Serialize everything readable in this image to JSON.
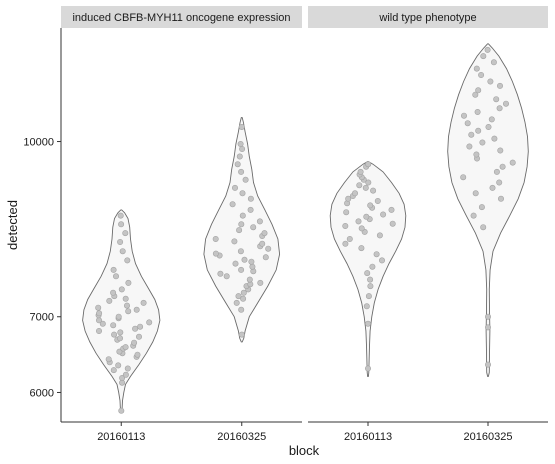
{
  "chart_data": {
    "type": "violin",
    "xlabel": "block",
    "ylabel": "detected",
    "y_scale": "log",
    "yticks": [
      6000,
      7000,
      10000
    ],
    "ylim": [
      5650,
      12600
    ],
    "categories": [
      "20160113",
      "20160325"
    ],
    "panels": [
      {
        "title": "induced CBFB-MYH11 oncogene expression",
        "violins": [
          {
            "category": "20160113",
            "min": 5760,
            "max": 8700,
            "profile": [
              [
                5760,
                0.01
              ],
              [
                5800,
                0.02
              ],
              [
                5900,
                0.03
              ],
              [
                6000,
                0.06
              ],
              [
                6100,
                0.1
              ],
              [
                6200,
                0.22
              ],
              [
                6350,
                0.42
              ],
              [
                6500,
                0.6
              ],
              [
                6650,
                0.75
              ],
              [
                6800,
                0.86
              ],
              [
                6950,
                0.92
              ],
              [
                7100,
                0.89
              ],
              [
                7250,
                0.8
              ],
              [
                7400,
                0.66
              ],
              [
                7600,
                0.48
              ],
              [
                7800,
                0.34
              ],
              [
                8000,
                0.26
              ],
              [
                8200,
                0.22
              ],
              [
                8400,
                0.2
              ],
              [
                8550,
                0.16
              ],
              [
                8650,
                0.08
              ],
              [
                8700,
                0.01
              ]
            ],
            "points": [
              5780,
              6120,
              6180,
              6220,
              6280,
              6300,
              6340,
              6380,
              6420,
              6450,
              6480,
              6500,
              6520,
              6560,
              6580,
              6600,
              6640,
              6680,
              6700,
              6720,
              6750,
              6780,
              6800,
              6830,
              6860,
              6880,
              6900,
              6920,
              6950,
              6980,
              7000,
              7020,
              7050,
              7080,
              7100,
              7130,
              7160,
              7200,
              7230,
              7260,
              7300,
              7350,
              7400,
              7500,
              7600,
              7700,
              7850,
              8000,
              8150,
              8300,
              8450,
              8600
            ]
          },
          {
            "category": "20160325",
            "min": 6650,
            "max": 10500,
            "profile": [
              [
                6650,
                0.01
              ],
              [
                6700,
                0.05
              ],
              [
                6800,
                0.08
              ],
              [
                7000,
                0.18
              ],
              [
                7200,
                0.38
              ],
              [
                7450,
                0.62
              ],
              [
                7700,
                0.82
              ],
              [
                7950,
                0.9
              ],
              [
                8200,
                0.86
              ],
              [
                8450,
                0.72
              ],
              [
                8700,
                0.55
              ],
              [
                8950,
                0.38
              ],
              [
                9200,
                0.28
              ],
              [
                9450,
                0.24
              ],
              [
                9700,
                0.18
              ],
              [
                9950,
                0.14
              ],
              [
                10200,
                0.08
              ],
              [
                10400,
                0.04
              ],
              [
                10500,
                0.01
              ]
            ],
            "points": [
              6750,
              7100,
              7200,
              7260,
              7300,
              7350,
              7400,
              7450,
              7480,
              7500,
              7550,
              7600,
              7640,
              7680,
              7700,
              7750,
              7800,
              7830,
              7860,
              7900,
              7930,
              7960,
              8000,
              8040,
              8080,
              8120,
              8160,
              8200,
              8250,
              8300,
              8350,
              8400,
              8450,
              8500,
              8600,
              8700,
              8800,
              8900,
              9000,
              9100,
              9250,
              9400,
              9550,
              9700,
              9850,
              9950,
              10300
            ]
          }
        ]
      },
      {
        "title": "wild type phenotype",
        "violins": [
          {
            "category": "20160113",
            "min": 6200,
            "max": 9600,
            "profile": [
              [
                6200,
                0.01
              ],
              [
                6250,
                0.02
              ],
              [
                6400,
                0.025
              ],
              [
                6600,
                0.035
              ],
              [
                6800,
                0.05
              ],
              [
                7000,
                0.09
              ],
              [
                7200,
                0.15
              ],
              [
                7400,
                0.24
              ],
              [
                7600,
                0.36
              ],
              [
                7800,
                0.5
              ],
              [
                8000,
                0.66
              ],
              [
                8200,
                0.8
              ],
              [
                8400,
                0.88
              ],
              [
                8600,
                0.9
              ],
              [
                8800,
                0.86
              ],
              [
                9000,
                0.74
              ],
              [
                9200,
                0.56
              ],
              [
                9400,
                0.36
              ],
              [
                9550,
                0.12
              ],
              [
                9600,
                0.01
              ]
            ],
            "points": [
              6300,
              6900,
              7150,
              7300,
              7450,
              7550,
              7650,
              7750,
              7850,
              7950,
              8050,
              8120,
              8200,
              8260,
              8320,
              8380,
              8420,
              8460,
              8500,
              8540,
              8580,
              8620,
              8660,
              8700,
              8740,
              8780,
              8820,
              8860,
              8900,
              8950,
              9000,
              9050,
              9100,
              9150,
              9200,
              9250,
              9300,
              9350,
              9400,
              9500,
              9550
            ]
          },
          {
            "category": "20160325",
            "min": 6200,
            "max": 12200,
            "profile": [
              [
                6200,
                0.01
              ],
              [
                6250,
                0.03
              ],
              [
                6500,
                0.035
              ],
              [
                6800,
                0.045
              ],
              [
                7100,
                0.035
              ],
              [
                7400,
                0.03
              ],
              [
                7700,
                0.05
              ],
              [
                8000,
                0.12
              ],
              [
                8300,
                0.3
              ],
              [
                8600,
                0.52
              ],
              [
                8900,
                0.72
              ],
              [
                9200,
                0.86
              ],
              [
                9500,
                0.93
              ],
              [
                9800,
                0.96
              ],
              [
                10100,
                0.94
              ],
              [
                10400,
                0.88
              ],
              [
                10700,
                0.8
              ],
              [
                11000,
                0.7
              ],
              [
                11300,
                0.58
              ],
              [
                11600,
                0.44
              ],
              [
                11900,
                0.26
              ],
              [
                12100,
                0.1
              ],
              [
                12200,
                0.01
              ]
            ],
            "points": [
              6350,
              6850,
              7000,
              8400,
              8600,
              8750,
              8900,
              9000,
              9100,
              9200,
              9300,
              9400,
              9500,
              9580,
              9660,
              9740,
              9820,
              9900,
              9980,
              10060,
              10140,
              10220,
              10300,
              10380,
              10460,
              10540,
              10620,
              10700,
              10800,
              10900,
              11000,
              11100,
              11200,
              11300,
              11450,
              11600,
              11750,
              11900,
              12050
            ]
          }
        ]
      }
    ]
  }
}
